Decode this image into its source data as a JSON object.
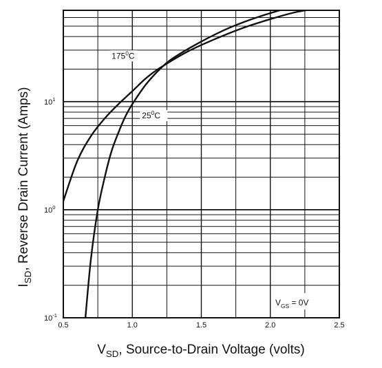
{
  "chart_data": {
    "type": "line",
    "title": "",
    "xlabel": {
      "main": "V",
      "sub": "SD",
      "rest": ", Source-to-Drain Voltage (volts)"
    },
    "ylabel": {
      "main": "I",
      "sub": "SD",
      "rest": ", Reverse Drain Current (Amps)"
    },
    "xlim": [
      0.5,
      2.5
    ],
    "ylim": [
      0.1,
      70
    ],
    "yscale": "log",
    "grid": true,
    "x_ticks": [
      "0.5",
      "1.0",
      "1.5",
      "2.0",
      "2.5"
    ],
    "y_ticks": [
      {
        "value": 0.1,
        "base": "10",
        "exp": "-1"
      },
      {
        "value": 1,
        "base": "10",
        "exp": "0"
      },
      {
        "value": 10,
        "base": "10",
        "exp": "1"
      }
    ],
    "series": [
      {
        "name": "175°C",
        "label_main": "175",
        "label_sup": "0",
        "label_unit": "C",
        "x": [
          0.5,
          0.6,
          0.7,
          0.8,
          0.9,
          1.0,
          1.1,
          1.2,
          1.4,
          1.6,
          1.8,
          2.0,
          2.2,
          2.4
        ],
        "y": [
          1.2,
          2.8,
          4.8,
          7.0,
          9.5,
          12.5,
          16.5,
          20.5,
          29,
          38,
          48,
          58,
          68,
          74
        ]
      },
      {
        "name": "25°C",
        "label_main": "25",
        "label_sup": "0",
        "label_unit": "C",
        "x": [
          0.66,
          0.7,
          0.75,
          0.8,
          0.85,
          0.9,
          0.95,
          1.0,
          1.1,
          1.2,
          1.3,
          1.5,
          1.7,
          1.9,
          2.1
        ],
        "y": [
          0.1,
          0.35,
          1.0,
          2.0,
          3.5,
          5.2,
          7.3,
          9.5,
          14.5,
          20,
          25.5,
          36,
          48,
          60,
          72
        ]
      }
    ],
    "condition": {
      "main": "V",
      "sub": "GS",
      "rest": " = 0V"
    }
  }
}
